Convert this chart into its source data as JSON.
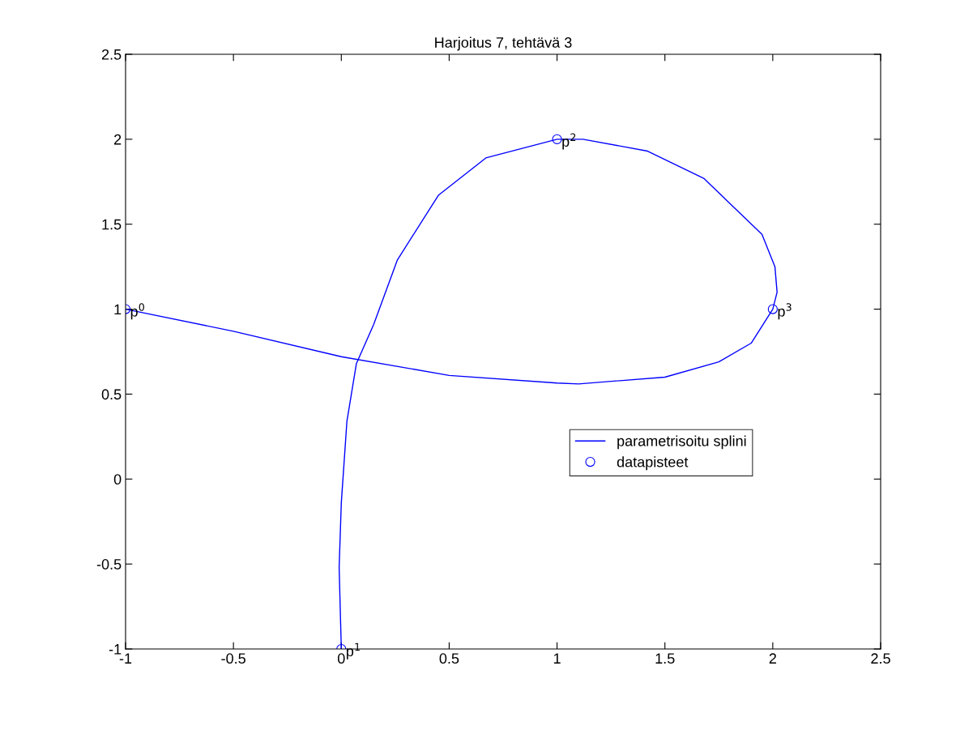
{
  "chart_data": {
    "type": "line",
    "title": "Harjoitus 7, tehtävä 3",
    "xlim": [
      -1,
      2.5
    ],
    "ylim": [
      -1,
      2.5
    ],
    "xticks": [
      -1,
      -0.5,
      0,
      0.5,
      1,
      1.5,
      2,
      2.5
    ],
    "yticks": [
      -1,
      -0.5,
      0,
      0.5,
      1,
      1.5,
      2,
      2.5
    ],
    "grid": false,
    "legend": "right",
    "series": [
      {
        "name": "parametrisoitu splini",
        "color": "#0000ff",
        "marker": "none",
        "line_style": "solid",
        "x": [
          -1,
          -0.5,
          0,
          0.5,
          1,
          1.1,
          1.5,
          1.75,
          1.9,
          2.0,
          2.02,
          2.01,
          1.95,
          1.68,
          1.42,
          1.12,
          1.0,
          0.67,
          0.45,
          0.26,
          0.15,
          0.07,
          0.026,
          0.0,
          -0.01,
          0
        ],
        "values": [
          1,
          0.87,
          0.72,
          0.61,
          0.565,
          0.56,
          0.6,
          0.69,
          0.8,
          1.0,
          1.1,
          1.25,
          1.44,
          1.77,
          1.93,
          2.0,
          2.0,
          1.89,
          1.67,
          1.29,
          0.91,
          0.68,
          0.34,
          -0.14,
          -0.52,
          -1
        ]
      },
      {
        "name": "datapisteet",
        "type": "scatter",
        "color": "#0000ff",
        "marker": "circle",
        "x": [
          -1,
          0,
          1,
          2
        ],
        "values": [
          1,
          -1,
          2,
          1
        ]
      }
    ],
    "annotations": [
      {
        "text": "p$^{0}$",
        "x": -1,
        "y": 1
      },
      {
        "text": "p$^{1}$",
        "x": 0,
        "y": -1
      },
      {
        "text": "p$^{2}$",
        "x": 1,
        "y": 2
      },
      {
        "text": "p$^{3}$",
        "x": 2,
        "y": 1
      }
    ]
  }
}
